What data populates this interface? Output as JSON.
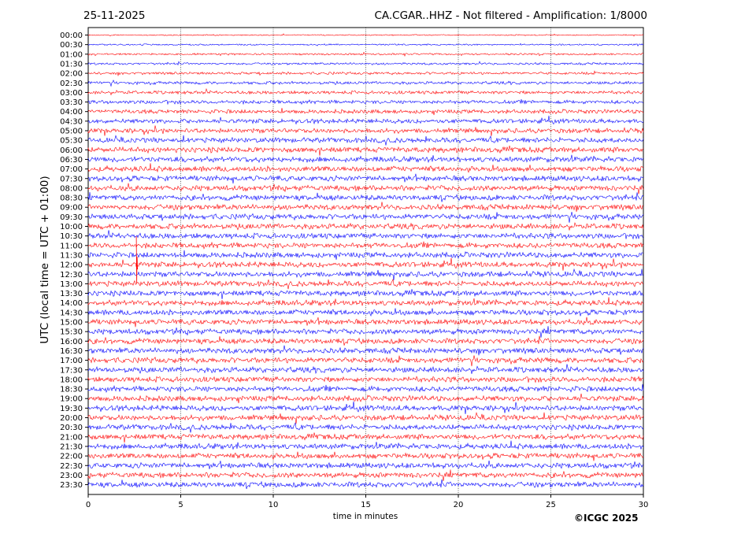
{
  "header": {
    "date": "25-11-2025",
    "station_info": "CA.CGAR..HHZ - Not filtered - Amplification: 1/8000"
  },
  "footer": {
    "copyright": "©ICGC 2025"
  },
  "chart_data": {
    "type": "line",
    "title": "CA.CGAR..HHZ - Not filtered - Amplification: 1/8000",
    "xlabel": "time in minutes",
    "ylabel": "UTC (local time = UTC + 01:00)",
    "xlim": [
      0,
      30
    ],
    "x_ticks": [
      "0",
      "5",
      "10",
      "15",
      "20",
      "25",
      "30"
    ],
    "y_ticks": [
      "00:00",
      "00:30",
      "01:00",
      "01:30",
      "02:00",
      "02:30",
      "03:00",
      "03:30",
      "04:00",
      "04:30",
      "05:00",
      "05:30",
      "06:00",
      "06:30",
      "07:00",
      "07:30",
      "08:00",
      "08:30",
      "09:00",
      "09:30",
      "10:00",
      "10:30",
      "11:00",
      "11:30",
      "12:00",
      "12:30",
      "13:00",
      "13:30",
      "14:00",
      "14:30",
      "15:00",
      "15:30",
      "16:00",
      "16:30",
      "17:00",
      "17:30",
      "18:00",
      "18:30",
      "19:00",
      "19:30",
      "20:00",
      "20:30",
      "21:00",
      "21:30",
      "22:00",
      "22:30",
      "23:00",
      "23:30"
    ],
    "grid": "vertical dotted",
    "trace_colors": [
      "#ff0000",
      "#0000ff"
    ],
    "event": {
      "row": "12:00",
      "minute": 2.6
    }
  }
}
